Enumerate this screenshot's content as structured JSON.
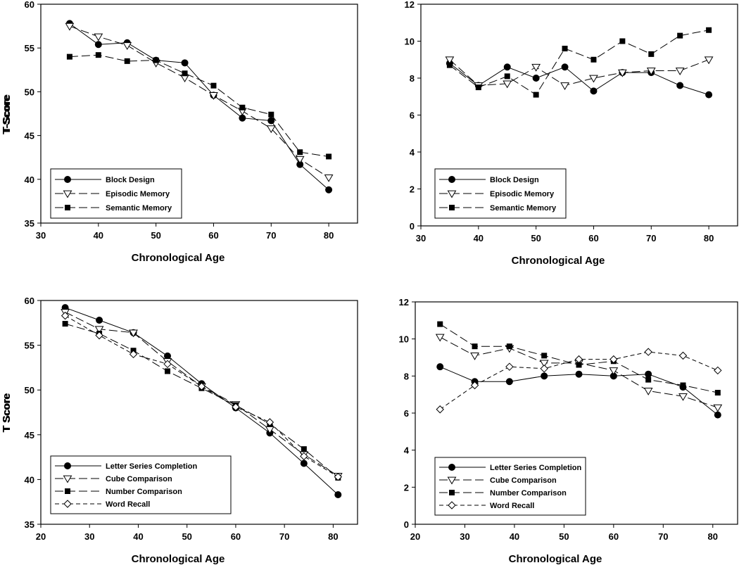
{
  "chart_data": [
    {
      "type": "line",
      "xlabel": "Chronological Age",
      "ylabel": "T-Score",
      "xlim": [
        30,
        85
      ],
      "ylim": [
        35,
        60
      ],
      "xticks": [
        30,
        40,
        50,
        60,
        70,
        80
      ],
      "yticks": [
        35,
        40,
        45,
        50,
        55,
        60
      ],
      "legend_position": "bottom-left",
      "x": [
        35,
        40,
        45,
        50,
        55,
        60,
        65,
        70,
        75,
        80
      ],
      "series": [
        {
          "name": "Block Design",
          "marker": "circle",
          "dash": "solid",
          "values": [
            57.8,
            55.4,
            55.6,
            53.6,
            53.3,
            49.6,
            47.0,
            46.7,
            41.7,
            38.8
          ]
        },
        {
          "name": "Episodic Memory",
          "marker": "triangle-open",
          "dash": "long",
          "values": [
            57.5,
            56.3,
            55.3,
            53.3,
            51.6,
            49.6,
            47.8,
            45.8,
            42.3,
            40.2
          ]
        },
        {
          "name": "Semantic Memory",
          "marker": "square",
          "dash": "long",
          "values": [
            54.0,
            54.2,
            53.5,
            53.6,
            52.1,
            50.7,
            48.2,
            47.4,
            43.1,
            42.6
          ]
        }
      ]
    },
    {
      "type": "line",
      "xlabel": "Chronological Age",
      "ylabel": "T-Score",
      "xlim": [
        30,
        85
      ],
      "ylim": [
        0,
        12
      ],
      "xticks": [
        30,
        40,
        50,
        60,
        70,
        80
      ],
      "yticks": [
        0,
        2,
        4,
        6,
        8,
        10,
        12
      ],
      "legend_position": "bottom-left",
      "x": [
        35,
        40,
        45,
        50,
        55,
        60,
        65,
        70,
        75,
        80
      ],
      "series": [
        {
          "name": "Block Design",
          "marker": "circle",
          "dash": "solid",
          "values": [
            8.8,
            7.6,
            8.6,
            8.0,
            8.6,
            7.3,
            8.3,
            8.3,
            7.6,
            7.1
          ]
        },
        {
          "name": "Episodic Memory",
          "marker": "triangle-open",
          "dash": "long",
          "values": [
            9.0,
            7.6,
            7.7,
            8.6,
            7.6,
            8.0,
            8.3,
            8.4,
            8.4,
            9.0
          ]
        },
        {
          "name": "Semantic Memory",
          "marker": "square",
          "dash": "long",
          "values": [
            8.7,
            7.5,
            8.1,
            7.1,
            9.6,
            9.0,
            10.0,
            9.3,
            10.3,
            10.6
          ]
        }
      ]
    },
    {
      "type": "line",
      "xlabel": "Chronological Age",
      "ylabel": "T Score",
      "xlim": [
        20,
        85
      ],
      "ylim": [
        35,
        60
      ],
      "xticks": [
        20,
        30,
        40,
        50,
        60,
        70,
        80
      ],
      "yticks": [
        35,
        40,
        45,
        50,
        55,
        60
      ],
      "legend_position": "bottom-left",
      "x": [
        25,
        32,
        39,
        46,
        53,
        60,
        67,
        74,
        81
      ],
      "series": [
        {
          "name": "Letter Series Completion",
          "marker": "circle",
          "dash": "solid",
          "values": [
            59.2,
            57.8,
            56.4,
            53.8,
            50.7,
            48.0,
            45.2,
            41.8,
            38.3
          ]
        },
        {
          "name": "Cube Comparison",
          "marker": "triangle-open",
          "dash": "long",
          "values": [
            58.7,
            56.8,
            56.4,
            53.2,
            50.4,
            48.4,
            45.6,
            42.8,
            40.4
          ]
        },
        {
          "name": "Number Comparison",
          "marker": "square",
          "dash": "long",
          "values": [
            57.4,
            56.3,
            54.4,
            52.1,
            50.2,
            48.3,
            46.2,
            43.4,
            40.2
          ]
        },
        {
          "name": "Word Recall",
          "marker": "diamond-open",
          "dash": "short",
          "values": [
            58.3,
            56.1,
            54.0,
            52.9,
            50.4,
            48.1,
            46.4,
            42.6,
            40.3
          ]
        }
      ]
    },
    {
      "type": "line",
      "xlabel": "Chronological Age",
      "ylabel": "T Score",
      "xlim": [
        20,
        85
      ],
      "ylim": [
        0,
        12
      ],
      "xticks": [
        20,
        30,
        40,
        50,
        60,
        70,
        80
      ],
      "yticks": [
        0,
        2,
        4,
        6,
        8,
        10,
        12
      ],
      "legend_position": "bottom-left",
      "x": [
        25,
        32,
        39,
        46,
        53,
        60,
        67,
        74,
        81
      ],
      "series": [
        {
          "name": "Letter Series Completion",
          "marker": "circle",
          "dash": "solid",
          "values": [
            8.5,
            7.7,
            7.7,
            8.0,
            8.1,
            8.0,
            8.1,
            7.4,
            5.9
          ]
        },
        {
          "name": "Cube Comparison",
          "marker": "triangle-open",
          "dash": "long",
          "values": [
            10.1,
            9.1,
            9.5,
            8.7,
            8.7,
            8.3,
            7.2,
            6.9,
            6.3
          ]
        },
        {
          "name": "Number Comparison",
          "marker": "square",
          "dash": "long",
          "values": [
            10.8,
            9.6,
            9.6,
            9.1,
            8.6,
            8.8,
            7.8,
            7.5,
            7.1
          ]
        },
        {
          "name": "Word Recall",
          "marker": "diamond-open",
          "dash": "short",
          "values": [
            6.2,
            7.5,
            8.5,
            8.4,
            8.9,
            8.9,
            9.3,
            9.1,
            8.3
          ]
        }
      ]
    }
  ]
}
